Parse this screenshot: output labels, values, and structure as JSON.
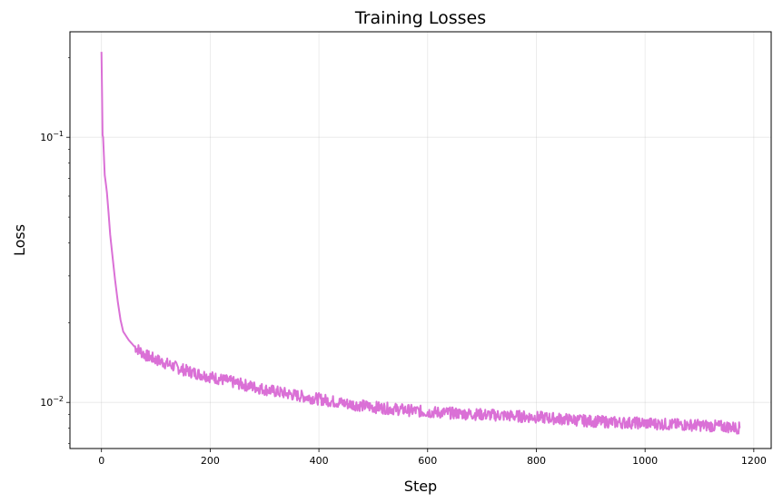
{
  "chart_data": {
    "type": "line",
    "title": "Training Losses",
    "xlabel": "Step",
    "ylabel": "Loss",
    "xscale": "linear",
    "yscale": "log",
    "xlim": [
      -58,
      1232
    ],
    "ylim": [
      0.0067,
      0.25
    ],
    "grid": true,
    "x_ticks": [
      0,
      200,
      400,
      600,
      800,
      1000,
      1200
    ],
    "y_ticks": [
      {
        "value": 0.1,
        "base": "10",
        "exp": "−1"
      },
      {
        "value": 0.01,
        "base": "10",
        "exp": "−2"
      }
    ],
    "series": [
      {
        "color": "#da70d6",
        "x": [
          0,
          1,
          2,
          3,
          4,
          6,
          8,
          10,
          13,
          16,
          20,
          25,
          30,
          35,
          40,
          50,
          60,
          70,
          80,
          90,
          100,
          120,
          140,
          160,
          180,
          200,
          250,
          300,
          350,
          400,
          450,
          500,
          550,
          600,
          650,
          700,
          750,
          800,
          850,
          900,
          950,
          1000,
          1050,
          1100,
          1150,
          1175
        ],
        "y": [
          0.21,
          0.15,
          0.102,
          0.1,
          0.09,
          0.072,
          0.067,
          0.062,
          0.052,
          0.043,
          0.036,
          0.029,
          0.024,
          0.0205,
          0.0185,
          0.0172,
          0.0163,
          0.0157,
          0.0151,
          0.0148,
          0.0145,
          0.014,
          0.0135,
          0.0131,
          0.0128,
          0.0125,
          0.0118,
          0.0112,
          0.0107,
          0.0103,
          0.0099,
          0.0096,
          0.0094,
          0.0092,
          0.0091,
          0.009,
          0.0089,
          0.0088,
          0.00865,
          0.0085,
          0.0084,
          0.00835,
          0.00825,
          0.0082,
          0.0081,
          0.008
        ]
      }
    ]
  }
}
